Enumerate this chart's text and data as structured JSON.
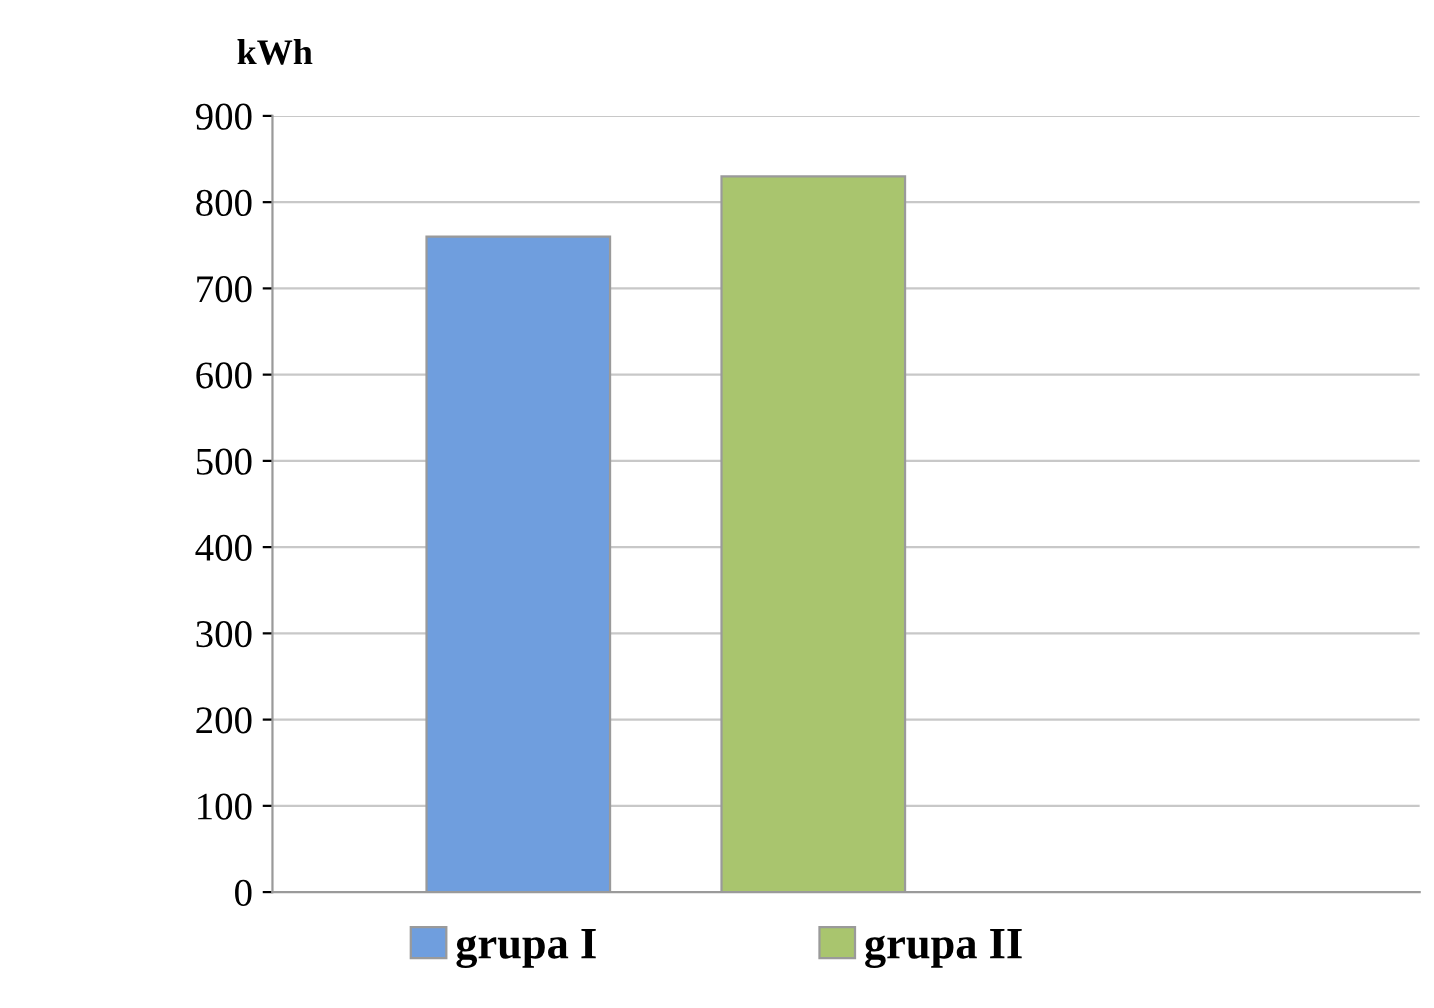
{
  "chart_data": {
    "type": "bar",
    "ylabel": "kWh",
    "categories": [
      null
    ],
    "series": [
      {
        "name": "grupa I",
        "color": "#6f9ede",
        "values": [
          760
        ]
      },
      {
        "name": "grupa II",
        "color": "#a9c56e",
        "values": [
          830
        ]
      }
    ],
    "ylim": [
      0,
      900
    ],
    "yticks": [
      0,
      100,
      200,
      300,
      400,
      500,
      600,
      700,
      800,
      900
    ],
    "grid": "y",
    "legend": "bottom"
  }
}
